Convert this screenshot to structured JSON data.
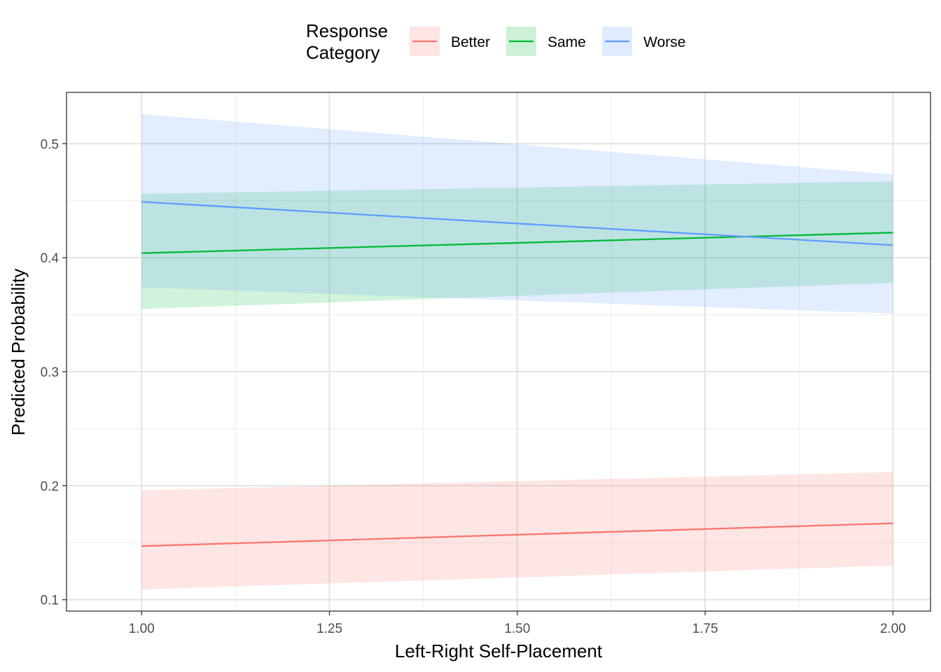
{
  "chart_data": {
    "type": "line",
    "xlabel": "Left-Right Self-Placement",
    "ylabel": "Predicted Probability",
    "xlim": [
      0.9,
      2.05
    ],
    "ylim": [
      0.09,
      0.545
    ],
    "x_ticks": [
      "1.00",
      "1.25",
      "1.50",
      "1.75",
      "2.00"
    ],
    "x_tick_values": [
      1.0,
      1.25,
      1.5,
      1.75,
      2.0
    ],
    "y_ticks": [
      "0.1",
      "0.2",
      "0.3",
      "0.4",
      "0.5"
    ],
    "y_tick_values": [
      0.1,
      0.2,
      0.3,
      0.4,
      0.5
    ],
    "grid": true,
    "legend": {
      "title_line1": "Response",
      "title_line2": "Category",
      "placement": "top"
    },
    "series": [
      {
        "name": "Better",
        "color": "#F8766D",
        "fill": "#F8766D",
        "x": [
          1.0,
          2.0
        ],
        "y": [
          0.147,
          0.167
        ],
        "lower": [
          0.109,
          0.13
        ],
        "upper": [
          0.196,
          0.212
        ]
      },
      {
        "name": "Same",
        "color": "#00BA38",
        "fill": "#00BA38",
        "x": [
          1.0,
          2.0
        ],
        "y": [
          0.404,
          0.422
        ],
        "lower": [
          0.355,
          0.378
        ],
        "upper": [
          0.456,
          0.467
        ]
      },
      {
        "name": "Worse",
        "color": "#619CFF",
        "fill": "#619CFF",
        "x": [
          1.0,
          2.0
        ],
        "y": [
          0.449,
          0.411
        ],
        "lower": [
          0.374,
          0.351
        ],
        "upper": [
          0.526,
          0.473
        ]
      }
    ]
  }
}
